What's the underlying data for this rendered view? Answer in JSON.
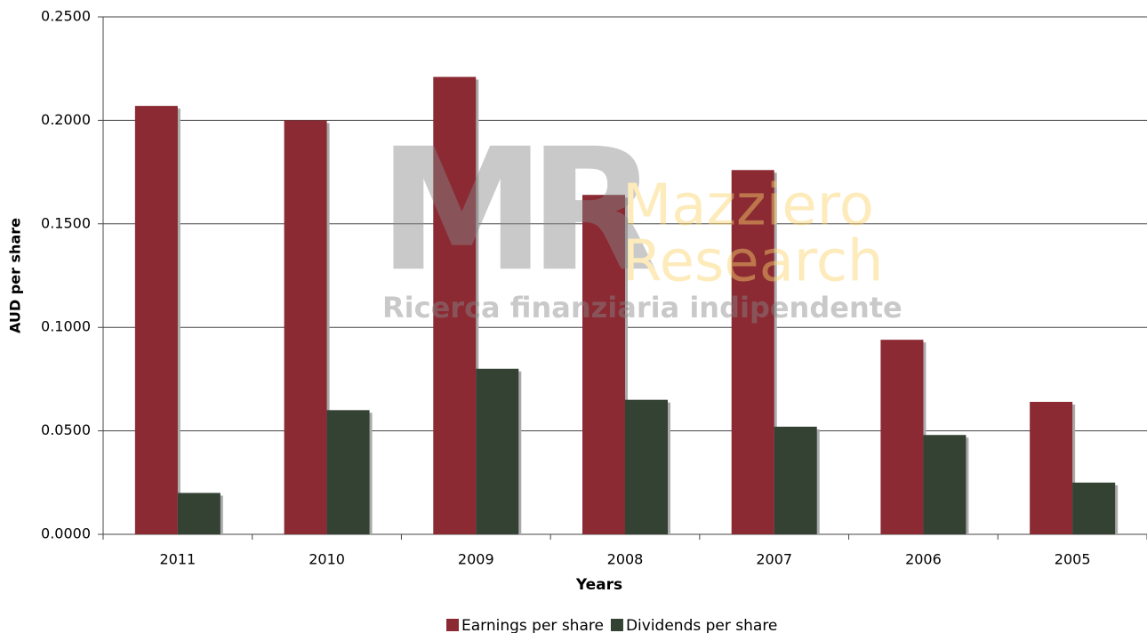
{
  "chart_data": {
    "type": "bar",
    "x_label": "Years",
    "y_label": "AUD per share",
    "categories": [
      "2011",
      "2010",
      "2009",
      "2008",
      "2007",
      "2006",
      "2005"
    ],
    "series": [
      {
        "name": "Earnings per share",
        "color": "#8b2a33",
        "values": [
          0.207,
          0.2,
          0.221,
          0.164,
          0.176,
          0.094,
          0.064
        ]
      },
      {
        "name": "Dividends per share",
        "color": "#344234",
        "values": [
          0.02,
          0.06,
          0.08,
          0.065,
          0.052,
          0.048,
          0.025
        ]
      }
    ],
    "ylim": [
      0,
      0.25
    ],
    "yticks": [
      {
        "value": 0,
        "label": "0.0000"
      },
      {
        "value": 0.05,
        "label": "0.0500"
      },
      {
        "value": 0.1,
        "label": "0.1000"
      },
      {
        "value": 0.15,
        "label": "0.1500"
      },
      {
        "value": 0.2,
        "label": "0.2000"
      },
      {
        "value": 0.25,
        "label": "0.2500"
      }
    ],
    "grid": true,
    "legend": "bottom",
    "watermark": {
      "logo": "MR",
      "name_line1": "Mazziero",
      "name_line2": "Research",
      "tagline": "Ricerca finanziaria indipendente"
    }
  }
}
